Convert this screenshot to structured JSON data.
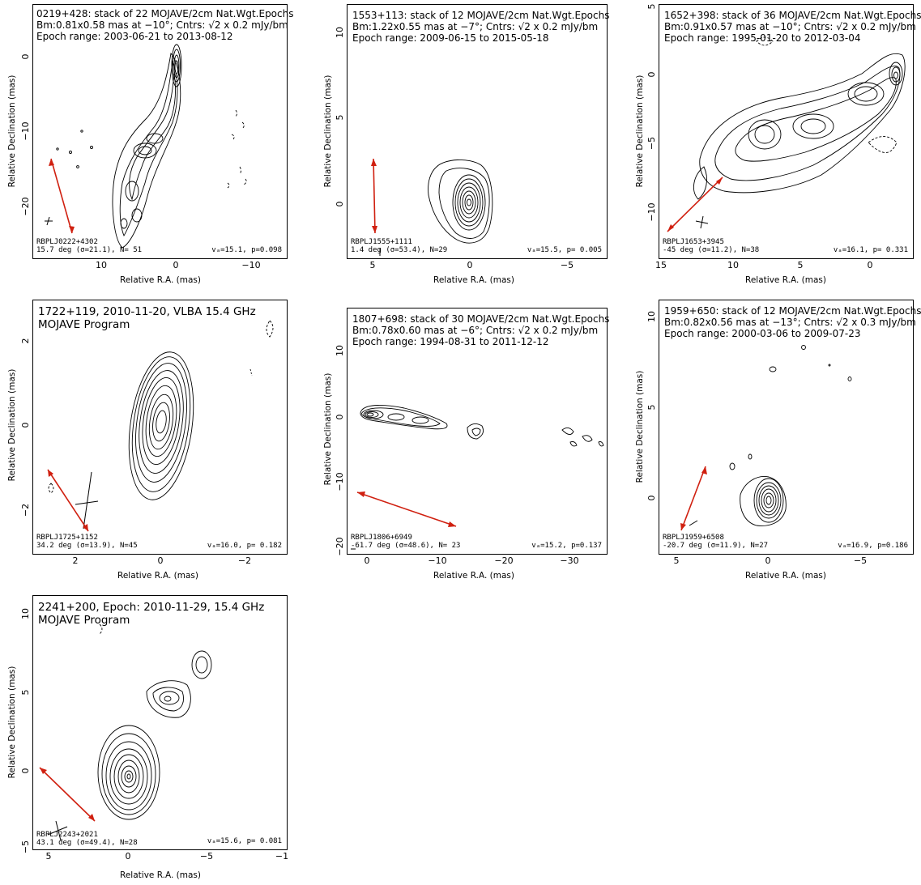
{
  "figure": {
    "panels": [
      {
        "id": "0219+428",
        "title_lines": [
          "0219+428: stack of 22 MOJAVE/2cm Nat.Wgt.Epochs",
          "Bm:0.81x0.58 mas at −10°; Cntrs: √2 x 0.2 mJy/bm",
          "Epoch range: 2003-06-21 to 2013-08-12"
        ],
        "bl_lines": [
          "RBPLJ0222+4302",
          "15.7 deg (σ=21.1), N= 51"
        ],
        "br_text": "vₐ=15.1, p=0.098",
        "xticks": [
          "10",
          "0",
          "−10"
        ],
        "yticks": [
          "0",
          "−10",
          "−20"
        ],
        "xlabel": "Relative R.A. (mas)",
        "ylabel": "Relative Declination (mas)"
      },
      {
        "id": "1553+113",
        "title_lines": [
          "1553+113: stack of 12 MOJAVE/2cm Nat.Wgt.Epochs",
          "Bm:1.22x0.55 mas at −7°; Cntrs: √2 x 0.2 mJy/bm",
          "Epoch range: 2009-06-15 to 2015-05-18"
        ],
        "bl_lines": [
          "RBPLJ1555+1111",
          "1.4 deg (σ=53.4), N=29"
        ],
        "br_text": "vₐ=15.5, p= 0.005",
        "xticks": [
          "5",
          "0",
          "−5"
        ],
        "yticks": [
          "10",
          "5",
          "0"
        ],
        "xlabel": "Relative R.A. (mas)",
        "ylabel": "Relative Declination (mas)"
      },
      {
        "id": "1652+398",
        "title_lines": [
          "1652+398: stack of 36 MOJAVE/2cm Nat.Wgt.Epochs",
          "Bm:0.91x0.57 mas at −10°; Cntrs: √2 x 0.2 mJy/bm",
          "Epoch range: 1995-01-20 to 2012-03-04"
        ],
        "bl_lines": [
          "RBPLJ1653+3945",
          "-45 deg (σ=11.2), N=38"
        ],
        "br_text": "vₐ=16.1, p= 0.331",
        "xticks": [
          "15",
          "10",
          "5",
          "0"
        ],
        "yticks": [
          "5",
          "0",
          "−5",
          "−10"
        ],
        "xlabel": "Relative R.A. (mas)",
        "ylabel": "Relative Declination (mas)"
      },
      {
        "id": "1722+119",
        "title_lines": [
          "1722+119, 2010-11-20, VLBA 15.4 GHz",
          "MOJAVE Program"
        ],
        "bl_lines": [
          "RBPLJ1725+1152",
          "34.2 deg (σ=13.9), N=45"
        ],
        "br_text": "vₐ=16.0, p= 0.182",
        "xticks": [
          "2",
          "0",
          "−2"
        ],
        "yticks": [
          "2",
          "0",
          "−2"
        ],
        "xlabel": "Relative R.A. (mas)",
        "ylabel": "Relative Declination (mas)"
      },
      {
        "id": "1807+698",
        "title_lines": [
          "1807+698: stack of 30 MOJAVE/2cm Nat.Wgt.Epochs",
          "Bm:0.78x0.60 mas at −6°; Cntrs: √2 x 0.2 mJy/bm",
          "Epoch range: 1994-08-31 to 2011-12-12"
        ],
        "bl_lines": [
          "RBPLJ1806+6949",
          "-61.7 deg (σ=48.6), N= 23"
        ],
        "br_text": "vₐ=15.2, p=0.137",
        "xticks": [
          "0",
          "−10",
          "−20",
          "−30"
        ],
        "yticks": [
          "10",
          "0",
          "−10",
          "−20"
        ],
        "xlabel": "Relative R.A. (mas)",
        "ylabel": "Relative Declination (mas)"
      },
      {
        "id": "1959+650",
        "title_lines": [
          "1959+650: stack of 12 MOJAVE/2cm Nat.Wgt.Epochs",
          "Bm:0.82x0.56 mas at −13°; Cntrs: √2 x 0.3 mJy/bm",
          "Epoch range: 2000-03-06 to 2009-07-23"
        ],
        "bl_lines": [
          "RBPLJ1959+6508",
          "-20.7 deg (σ=11.9), N=27"
        ],
        "br_text": "vₐ=16.9, p=0.186",
        "xticks": [
          "5",
          "0",
          "−5"
        ],
        "yticks": [
          "10",
          "5",
          "0"
        ],
        "xlabel": "Relative R.A. (mas)",
        "ylabel": "Relative Declination (mas)"
      },
      {
        "id": "2241+200",
        "title_lines": [
          "2241+200, Epoch: 2010-11-29, 15.4 GHz",
          "MOJAVE Program"
        ],
        "bl_lines": [
          "RBPLJ2243+2021",
          "43.1 deg (σ=49.4), N=28"
        ],
        "br_text": "vₐ=15.6, p= 0.081",
        "xticks": [
          "5",
          "0",
          "−5",
          "−1"
        ],
        "yticks": [
          "10",
          "5",
          "0",
          "−5"
        ],
        "xlabel": "Relative R.A. (mas)",
        "ylabel": "Relative Declination (mas)"
      }
    ],
    "arrow_color": "#d02010"
  }
}
